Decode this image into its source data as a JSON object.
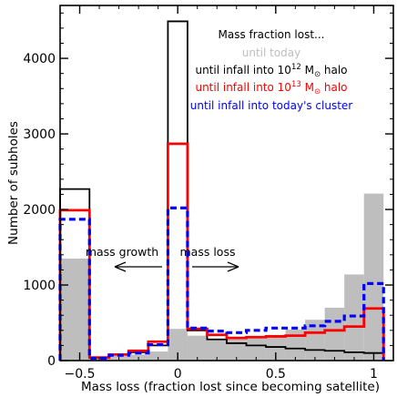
{
  "chart_data": {
    "type": "histogram",
    "xlabel": "Mass loss (fraction lost since becoming satellite)",
    "ylabel": "Number of subholes",
    "xlim": [
      -0.6,
      1.1
    ],
    "ylim": [
      0,
      4700
    ],
    "xticks": [
      -0.5,
      0,
      0.5,
      1
    ],
    "xtick_labels": [
      "−0.5",
      "0",
      "0.5",
      "1"
    ],
    "yticks": [
      0,
      1000,
      2000,
      3000,
      4000
    ],
    "ytick_labels": [
      "0",
      "1000",
      "2000",
      "3000",
      "4000"
    ],
    "bin_edges": [
      -0.6,
      -0.45,
      -0.35,
      -0.25,
      -0.15,
      -0.05,
      0.05,
      0.15,
      0.25,
      0.35,
      0.45,
      0.55,
      0.65,
      0.75,
      0.85,
      0.95,
      1.05
    ],
    "legend_title": "Mass fraction lost...",
    "series": [
      {
        "name": "until today",
        "color": "#bebebe",
        "style": "filled",
        "values": [
          1350,
          30,
          60,
          80,
          120,
          420,
          330,
          290,
          300,
          320,
          340,
          410,
          540,
          700,
          1140,
          2210
        ]
      },
      {
        "name": "until infall into 10^12 M_⊙ halo",
        "color": "#000000",
        "style": "solid",
        "values": [
          2270,
          40,
          80,
          110,
          200,
          4490,
          400,
          280,
          230,
          200,
          180,
          160,
          140,
          130,
          110,
          100
        ]
      },
      {
        "name": "until infall into 10^13 M_⊙ halo",
        "color": "#ff0000",
        "style": "solid",
        "values": [
          1990,
          40,
          80,
          130,
          250,
          2870,
          420,
          340,
          300,
          310,
          320,
          330,
          370,
          400,
          450,
          690
        ]
      },
      {
        "name": "until infall into today's cluster",
        "color": "#0000ff",
        "style": "dashed",
        "values": [
          1870,
          30,
          70,
          100,
          210,
          2020,
          430,
          390,
          370,
          400,
          430,
          430,
          460,
          520,
          590,
          1020
        ]
      }
    ],
    "annotations": [
      {
        "text": "mass growth",
        "arrow": "left"
      },
      {
        "text": "mass loss",
        "arrow": "right"
      }
    ],
    "legend_position": "top-right",
    "grid": false
  }
}
